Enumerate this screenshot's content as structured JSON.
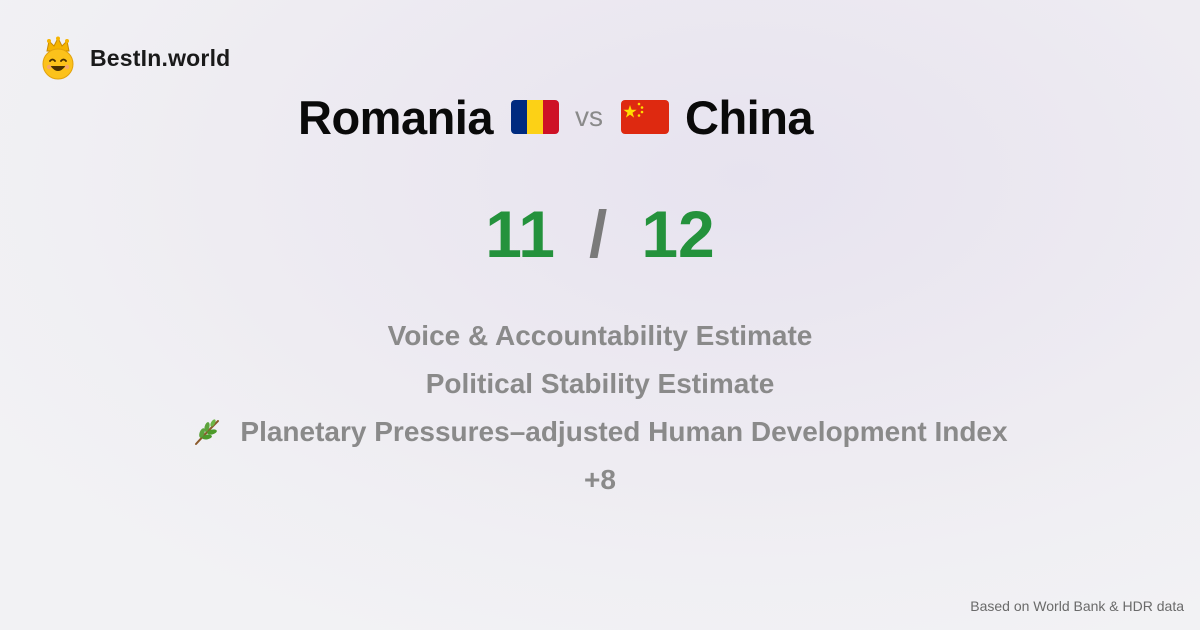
{
  "brand": {
    "name": "BestIn.world",
    "logo_icon": "smiling-face-with-crown-icon"
  },
  "matchup": {
    "left_country": "Romania",
    "left_flag": "romania-flag-icon",
    "vs_label": "vs",
    "right_country": "China",
    "right_flag": "china-flag-icon"
  },
  "score": {
    "left": "11",
    "separator": "/",
    "right": "12",
    "color": "#24923c"
  },
  "metrics": [
    {
      "label": "Voice & Accountability Estimate"
    },
    {
      "label": "Political Stability Estimate"
    },
    {
      "label": "Planetary Pressures–adjusted Human Development Index",
      "icon": "herb-icon"
    },
    {
      "label": "+8"
    }
  ],
  "footer": {
    "source": "Based on World Bank & HDR data"
  }
}
